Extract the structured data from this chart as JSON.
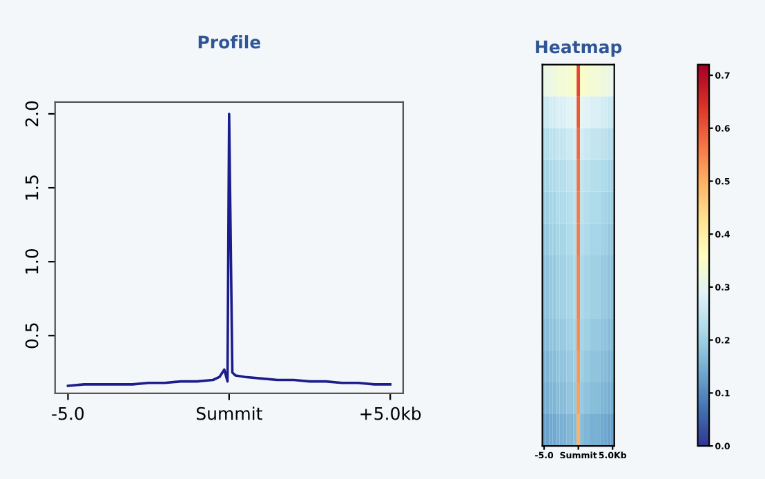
{
  "chart_data": [
    {
      "type": "line",
      "title": "Profile",
      "x": [
        -5,
        -4.5,
        -4,
        -3.5,
        -3,
        -2.5,
        -2,
        -1.5,
        -1,
        -0.5,
        -0.3,
        -0.15,
        -0.05,
        0,
        0.1,
        0.2,
        0.5,
        1,
        1.5,
        2,
        2.5,
        3,
        3.5,
        4,
        4.5,
        5
      ],
      "series": [
        {
          "color": "#1c1c8c",
          "values": [
            0.16,
            0.17,
            0.17,
            0.17,
            0.17,
            0.18,
            0.18,
            0.19,
            0.19,
            0.2,
            0.22,
            0.27,
            0.19,
            2.0,
            0.25,
            0.23,
            0.22,
            0.21,
            0.2,
            0.2,
            0.19,
            0.19,
            0.18,
            0.18,
            0.17,
            0.17
          ]
        }
      ],
      "xlim": [
        -5.4,
        5.4
      ],
      "ylim": [
        0.11,
        2.08
      ],
      "xticks": [
        {
          "value": -5,
          "label": "-5.0"
        },
        {
          "value": 0,
          "label": "Summit"
        },
        {
          "value": 5,
          "label": "+5.0kb"
        }
      ],
      "yticks": [
        0.5,
        {
          "value": 1,
          "label": "1.0"
        },
        1.5,
        {
          "value": 2,
          "label": "2.0"
        }
      ],
      "grid": false
    },
    {
      "type": "heatmap",
      "title": "Heatmap",
      "categories": [
        "-5.0",
        null,
        null,
        null,
        null,
        null,
        null,
        null,
        null,
        null,
        "Summit",
        null,
        null,
        null,
        null,
        null,
        null,
        null,
        null,
        null,
        "5.0Kb"
      ],
      "y_categories": [
        null,
        null,
        null,
        null,
        null,
        null,
        null,
        null,
        null,
        null,
        null,
        null
      ],
      "cells": [
        [
          0.31,
          0.31,
          0.32,
          0.32,
          0.33,
          0.33,
          0.33,
          0.34,
          0.34,
          0.35,
          0.62,
          0.35,
          0.34,
          0.34,
          0.33,
          0.33,
          0.33,
          0.32,
          0.32,
          0.31,
          0.31
        ],
        [
          0.26,
          0.26,
          0.27,
          0.27,
          0.28,
          0.28,
          0.28,
          0.29,
          0.29,
          0.3,
          0.6,
          0.3,
          0.29,
          0.29,
          0.28,
          0.28,
          0.28,
          0.27,
          0.27,
          0.26,
          0.26
        ],
        [
          0.23,
          0.23,
          0.24,
          0.24,
          0.25,
          0.25,
          0.25,
          0.26,
          0.26,
          0.27,
          0.58,
          0.27,
          0.26,
          0.26,
          0.25,
          0.25,
          0.25,
          0.24,
          0.24,
          0.23,
          0.23
        ],
        [
          0.21,
          0.21,
          0.22,
          0.22,
          0.23,
          0.23,
          0.23,
          0.24,
          0.24,
          0.25,
          0.57,
          0.25,
          0.24,
          0.24,
          0.23,
          0.23,
          0.23,
          0.22,
          0.22,
          0.21,
          0.21
        ],
        [
          0.2,
          0.2,
          0.21,
          0.21,
          0.22,
          0.22,
          0.22,
          0.23,
          0.23,
          0.24,
          0.56,
          0.24,
          0.23,
          0.23,
          0.22,
          0.22,
          0.22,
          0.21,
          0.21,
          0.2,
          0.2
        ],
        [
          0.19,
          0.19,
          0.2,
          0.2,
          0.21,
          0.21,
          0.21,
          0.22,
          0.22,
          0.23,
          0.56,
          0.23,
          0.22,
          0.22,
          0.21,
          0.21,
          0.21,
          0.2,
          0.2,
          0.19,
          0.19
        ],
        [
          0.18,
          0.18,
          0.19,
          0.19,
          0.2,
          0.2,
          0.2,
          0.21,
          0.21,
          0.22,
          0.55,
          0.22,
          0.21,
          0.21,
          0.2,
          0.2,
          0.2,
          0.19,
          0.19,
          0.18,
          0.18
        ],
        [
          0.18,
          0.18,
          0.19,
          0.19,
          0.2,
          0.2,
          0.2,
          0.21,
          0.21,
          0.22,
          0.55,
          0.22,
          0.21,
          0.21,
          0.2,
          0.2,
          0.2,
          0.19,
          0.19,
          0.18,
          0.18
        ],
        [
          0.17,
          0.17,
          0.18,
          0.18,
          0.19,
          0.19,
          0.19,
          0.2,
          0.2,
          0.21,
          0.54,
          0.21,
          0.2,
          0.2,
          0.19,
          0.19,
          0.19,
          0.18,
          0.18,
          0.17,
          0.17
        ],
        [
          0.16,
          0.16,
          0.17,
          0.17,
          0.18,
          0.18,
          0.18,
          0.19,
          0.19,
          0.2,
          0.53,
          0.2,
          0.19,
          0.19,
          0.18,
          0.18,
          0.18,
          0.17,
          0.17,
          0.16,
          0.16
        ],
        [
          0.15,
          0.15,
          0.16,
          0.16,
          0.17,
          0.17,
          0.17,
          0.18,
          0.18,
          0.19,
          0.52,
          0.19,
          0.18,
          0.18,
          0.17,
          0.17,
          0.17,
          0.16,
          0.16,
          0.15,
          0.15
        ],
        [
          0.13,
          0.13,
          0.14,
          0.14,
          0.15,
          0.15,
          0.15,
          0.16,
          0.16,
          0.17,
          0.5,
          0.17,
          0.16,
          0.16,
          0.15,
          0.15,
          0.15,
          0.14,
          0.14,
          0.13,
          0.13
        ]
      ],
      "clim": [
        0,
        0.72
      ],
      "cticks": [
        {
          "value": 0,
          "label": "0.0"
        },
        0.1,
        0.2,
        0.3,
        0.4,
        0.5,
        0.6,
        0.7
      ]
    }
  ]
}
